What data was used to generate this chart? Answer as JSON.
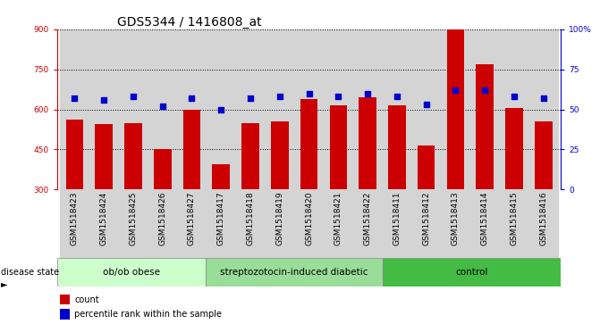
{
  "title": "GDS5344 / 1416808_at",
  "categories": [
    "GSM1518423",
    "GSM1518424",
    "GSM1518425",
    "GSM1518426",
    "GSM1518427",
    "GSM1518417",
    "GSM1518418",
    "GSM1518419",
    "GSM1518420",
    "GSM1518421",
    "GSM1518422",
    "GSM1518411",
    "GSM1518412",
    "GSM1518413",
    "GSM1518414",
    "GSM1518415",
    "GSM1518416"
  ],
  "counts": [
    560,
    545,
    548,
    450,
    600,
    395,
    548,
    555,
    640,
    615,
    645,
    615,
    465,
    900,
    770,
    605,
    555
  ],
  "percentile_ranks": [
    57,
    56,
    58,
    52,
    57,
    50,
    57,
    58,
    60,
    58,
    60,
    58,
    53,
    62,
    62,
    58,
    57
  ],
  "groups": [
    {
      "label": "ob/ob obese",
      "start": 0,
      "end": 5,
      "color": "#ccffcc"
    },
    {
      "label": "streptozotocin-induced diabetic",
      "start": 5,
      "end": 11,
      "color": "#99dd99"
    },
    {
      "label": "control",
      "start": 11,
      "end": 17,
      "color": "#44bb44"
    }
  ],
  "bar_color": "#cc0000",
  "dot_color": "#0000cc",
  "ylim_left": [
    300,
    900
  ],
  "ylim_right": [
    0,
    100
  ],
  "yticks_left": [
    300,
    450,
    600,
    750,
    900
  ],
  "yticks_right": [
    0,
    25,
    50,
    75,
    100
  ],
  "col_bg_color": "#d4d4d4",
  "plot_bg_color": "#ffffff",
  "title_fontsize": 10,
  "tick_fontsize": 6.5,
  "group_fontsize": 7.5
}
